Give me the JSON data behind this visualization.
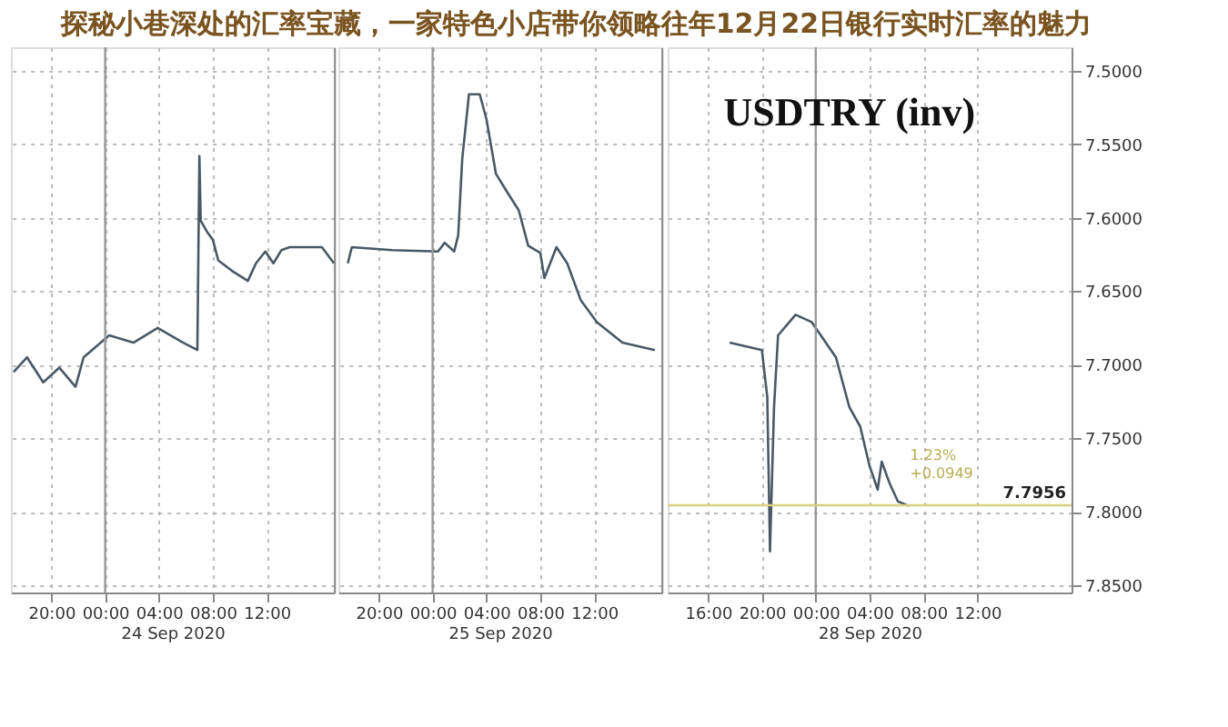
{
  "chart_data": [
    {
      "type": "line",
      "title": "探秘小巷深处的汇率宝藏，一家特色小店带你领略往年12月22日银行实时汇率的魅力",
      "xlabel": "24 Sep 2020",
      "x": [
        "2020-09-23T17:12",
        "2020-09-23T18:12",
        "2020-09-23T19:24",
        "2020-09-23T20:36",
        "2020-09-23T21:48",
        "2020-09-23T22:24",
        "2020-09-24T00:18",
        "2020-09-24T02:06",
        "2020-09-24T03:54",
        "2020-09-24T05:48",
        "2020-09-24T06:51",
        "2020-09-24T07:00",
        "2020-09-24T07:06",
        "2020-09-24T07:36",
        "2020-09-24T08:00",
        "2020-09-24T08:24",
        "2020-09-24T09:24",
        "2020-09-24T10:36",
        "2020-09-24T11:12",
        "2020-09-24T11:54",
        "2020-09-24T12:30",
        "2020-09-24T13:06",
        "2020-09-24T13:42",
        "2020-09-24T16:06",
        "2020-09-24T17:00"
      ],
      "series": [
        {
          "color": "#4a5866",
          "values": [
            7.705,
            7.695,
            7.712,
            7.702,
            7.715,
            7.695,
            7.68,
            7.685,
            7.675,
            7.685,
            7.69,
            7.558,
            7.602,
            7.61,
            7.615,
            7.629,
            7.636,
            7.643,
            7.631,
            7.623,
            7.631,
            7.622,
            7.62,
            7.62,
            7.631
          ]
        }
      ],
      "xlim": [
        "2020-09-23T17:00",
        "2020-09-24T17:00"
      ],
      "xticks": [
        {
          "value": "2020-09-23T20:00",
          "label": "20:00"
        },
        {
          "value": "2020-09-24T00:00",
          "label": "00:00"
        },
        {
          "value": "2020-09-24T04:00",
          "label": "04:00"
        },
        {
          "value": "2020-09-24T08:00",
          "label": "08:00"
        },
        {
          "value": "2020-09-24T12:00",
          "label": "12:00"
        }
      ],
      "ylim": [
        7.855,
        7.484
      ],
      "yticks": [
        7.5,
        7.55,
        7.6,
        7.65,
        7.7,
        7.75,
        7.8,
        7.85
      ],
      "tick_labels": "x",
      "ref_lines": [
        {
          "axis": "x",
          "value": "2020-09-24T00:00",
          "color": "#999999"
        }
      ],
      "grid": true,
      "line_style": "solid"
    },
    {
      "type": "line",
      "xlabel": "25 Sep 2020",
      "x": [
        "2020-09-24T17:42",
        "2020-09-24T18:00",
        "2020-09-24T21:00",
        "2020-09-25T00:24",
        "2020-09-25T00:54",
        "2020-09-25T01:36",
        "2020-09-25T01:54",
        "2020-09-25T02:12",
        "2020-09-25T02:42",
        "2020-09-25T03:30",
        "2020-09-25T04:00",
        "2020-09-25T04:42",
        "2020-09-25T05:30",
        "2020-09-25T06:24",
        "2020-09-25T07:06",
        "2020-09-25T08:00",
        "2020-09-25T08:18",
        "2020-09-25T09:12",
        "2020-09-25T10:00",
        "2020-09-25T11:00",
        "2020-09-25T12:12",
        "2020-09-25T14:06",
        "2020-09-25T16:30"
      ],
      "series": [
        {
          "color": "#4a5866",
          "values": [
            7.631,
            7.62,
            7.622,
            7.623,
            7.617,
            7.623,
            7.612,
            7.56,
            7.516,
            7.516,
            7.533,
            7.57,
            7.582,
            7.595,
            7.619,
            7.624,
            7.641,
            7.62,
            7.631,
            7.656,
            7.671,
            7.685,
            7.69
          ]
        }
      ],
      "xlim": [
        "2020-09-24T17:00",
        "2020-09-25T17:00"
      ],
      "xticks": [
        {
          "value": "2020-09-24T20:00",
          "label": "20:00"
        },
        {
          "value": "2020-09-25T00:00",
          "label": "00:00"
        },
        {
          "value": "2020-09-25T04:00",
          "label": "04:00"
        },
        {
          "value": "2020-09-25T08:00",
          "label": "08:00"
        },
        {
          "value": "2020-09-25T12:00",
          "label": "12:00"
        }
      ],
      "ylim": [
        7.855,
        7.484
      ],
      "yticks": [
        7.5,
        7.55,
        7.6,
        7.65,
        7.7,
        7.75,
        7.8,
        7.85
      ],
      "tick_labels": "x",
      "ref_lines": [
        {
          "axis": "x",
          "value": "2020-09-25T00:00",
          "color": "#999999"
        }
      ],
      "grid": true,
      "line_style": "solid"
    },
    {
      "type": "line",
      "subtitle": "USDTRY (inv)",
      "xlabel": "28 Sep 2020",
      "x": [
        "2020-09-27T17:36",
        "2020-09-27T20:00",
        "2020-09-27T20:24",
        "2020-09-27T20:36",
        "2020-09-27T20:54",
        "2020-09-27T21:12",
        "2020-09-27T22:30",
        "2020-09-27T23:42",
        "2020-09-28T01:30",
        "2020-09-28T02:30",
        "2020-09-28T03:18",
        "2020-09-28T04:00",
        "2020-09-28T04:36",
        "2020-09-28T04:54",
        "2020-09-28T05:30",
        "2020-09-28T06:06",
        "2020-09-28T06:54"
      ],
      "series": [
        {
          "color": "#4a5866",
          "values": [
            7.685,
            7.69,
            7.722,
            7.827,
            7.729,
            7.68,
            7.666,
            7.671,
            7.695,
            7.729,
            7.742,
            7.769,
            7.785,
            7.766,
            7.781,
            7.793,
            7.796
          ]
        }
      ],
      "xlim": [
        "2020-09-27T13:00",
        "2020-09-28T19:00"
      ],
      "xticks": [
        {
          "value": "2020-09-27T16:00",
          "label": "16:00"
        },
        {
          "value": "2020-09-27T20:00",
          "label": "20:00"
        },
        {
          "value": "2020-09-28T00:00",
          "label": "00:00"
        },
        {
          "value": "2020-09-28T04:00",
          "label": "04:00"
        },
        {
          "value": "2020-09-28T08:00",
          "label": "08:00"
        },
        {
          "value": "2020-09-28T12:00",
          "label": "12:00"
        }
      ],
      "ylim": [
        7.855,
        7.484
      ],
      "yticks": [
        {
          "value": 7.5,
          "label": "7.5000"
        },
        {
          "value": 7.55,
          "label": "7.5500"
        },
        {
          "value": 7.6,
          "label": "7.6000"
        },
        {
          "value": 7.65,
          "label": "7.6500"
        },
        {
          "value": 7.7,
          "label": "7.7000"
        },
        {
          "value": 7.75,
          "label": "7.7500"
        },
        {
          "value": 7.8,
          "label": "7.8000"
        },
        {
          "value": 7.85,
          "label": "7.8500"
        }
      ],
      "ref_lines": [
        {
          "axis": "x",
          "value": "2020-09-28T00:00",
          "color": "#999999"
        },
        {
          "axis": "y",
          "value": 7.7956,
          "label": "7.7956",
          "color": "#d8cf80"
        }
      ],
      "annotations": [
        "1.23%",
        "+0.0949"
      ],
      "grid": true,
      "line_style": "solid"
    }
  ]
}
